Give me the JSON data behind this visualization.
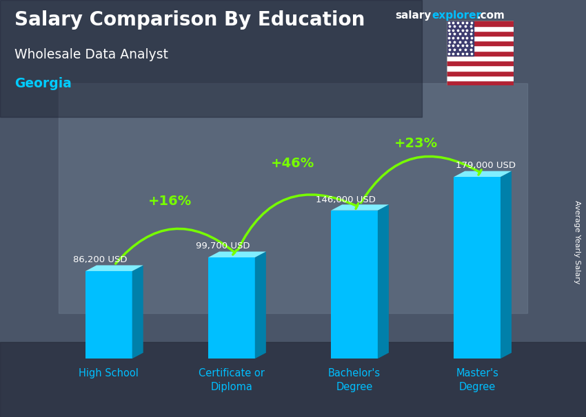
{
  "title_main": "Salary Comparison By Education",
  "title_sub": "Wholesale Data Analyst",
  "title_location": "Georgia",
  "ylabel": "Average Yearly Salary",
  "categories": [
    "High School",
    "Certificate or\nDiploma",
    "Bachelor's\nDegree",
    "Master's\nDegree"
  ],
  "values": [
    86200,
    99700,
    146000,
    179000
  ],
  "labels": [
    "86,200 USD",
    "99,700 USD",
    "146,000 USD",
    "179,000 USD"
  ],
  "pct_labels": [
    "+16%",
    "+46%",
    "+23%"
  ],
  "bar_color_main": "#00BFFF",
  "bar_color_light": "#55D8FF",
  "bar_color_dark": "#0080AA",
  "bar_color_top": "#80EEFF",
  "pct_color": "#77FF00",
  "label_color": "#FFFFFF",
  "title_color": "#FFFFFF",
  "sub_color": "#FFFFFF",
  "location_color": "#00CCFF",
  "bg_overlay_color": "#3a4a5a",
  "ylim": [
    0,
    230000
  ],
  "salary_color1": "#FFFFFF",
  "salary_color2": "#00BFFF",
  "xtick_color": "#00BFFF",
  "depth": 0.09,
  "bar_width": 0.38
}
